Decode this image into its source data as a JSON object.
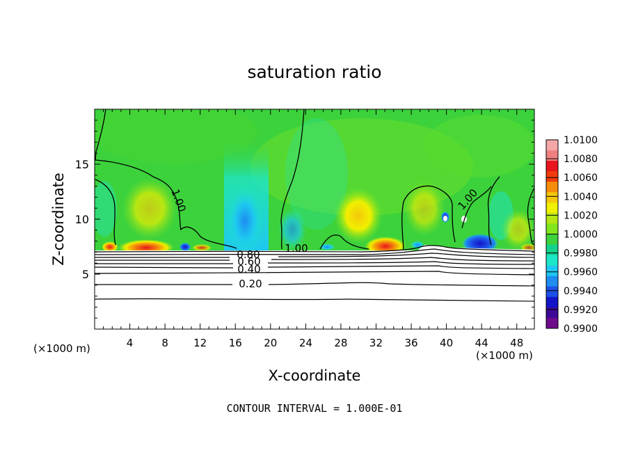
{
  "chart_data": {
    "type": "heatmap",
    "title": "saturation ratio",
    "xlabel": "X-coordinate",
    "ylabel": "Z-coordinate",
    "x_unit_left": "(×1000 m)",
    "x_unit_right": "(×1000 m)",
    "footer": "CONTOUR INTERVAL = 1.000E-01",
    "xlim": [
      0,
      50
    ],
    "ylim": [
      0,
      20
    ],
    "x_ticks": [
      4,
      8,
      12,
      16,
      20,
      24,
      28,
      32,
      36,
      40,
      44,
      48
    ],
    "x_tick_labels": [
      "4",
      "8",
      "12",
      "16",
      "20",
      "24",
      "28",
      "32",
      "36",
      "40",
      "44",
      "48"
    ],
    "y_ticks": [
      5,
      10,
      15
    ],
    "y_tick_labels": [
      "5",
      "10",
      "15"
    ],
    "colorbar": {
      "min": 0.99,
      "max": 1.01,
      "labels": [
        "1.0100",
        "1.0080",
        "1.0060",
        "1.0040",
        "1.0020",
        "1.0000",
        "0.9980",
        "0.9960",
        "0.9940",
        "0.9920",
        "0.9900"
      ],
      "colors": [
        "#f4a7a7",
        "#f08080",
        "#e8141e",
        "#f03c0a",
        "#f58c0a",
        "#f5c80a",
        "#f0f000",
        "#b4e614",
        "#82e61e",
        "#3cd23c",
        "#14d28c",
        "#1ee6c8",
        "#1ec8f0",
        "#1e8cf0",
        "#1e50e6",
        "#1414c8",
        "#3c0a96",
        "#6e0a8c"
      ]
    },
    "contours": [
      {
        "label": "1.00",
        "level": 1.0
      },
      {
        "label": "0.80",
        "level": 0.8
      },
      {
        "label": "0.60",
        "level": 0.6
      },
      {
        "label": "0.40",
        "level": 0.4
      },
      {
        "label": "0.20",
        "level": 0.2
      }
    ],
    "contour_labels": [
      "1.00",
      "1.00",
      "1.00",
      "0.80",
      "0.60",
      "0.40",
      "0.20"
    ],
    "cloud_base_z": 7.0,
    "hotspots": [
      {
        "x": 7.0,
        "z": 7.6,
        "value": 1.0065
      },
      {
        "x": 32.0,
        "z": 7.8,
        "value": 1.007
      },
      {
        "x": 29.8,
        "z": 10.5,
        "value": 1.003
      },
      {
        "x": 16.5,
        "z": 9.5,
        "value": 0.9962
      },
      {
        "x": 42.5,
        "z": 7.8,
        "value": 0.9925
      },
      {
        "x": 39.5,
        "z": 7.5,
        "value": 0.9955
      }
    ]
  }
}
